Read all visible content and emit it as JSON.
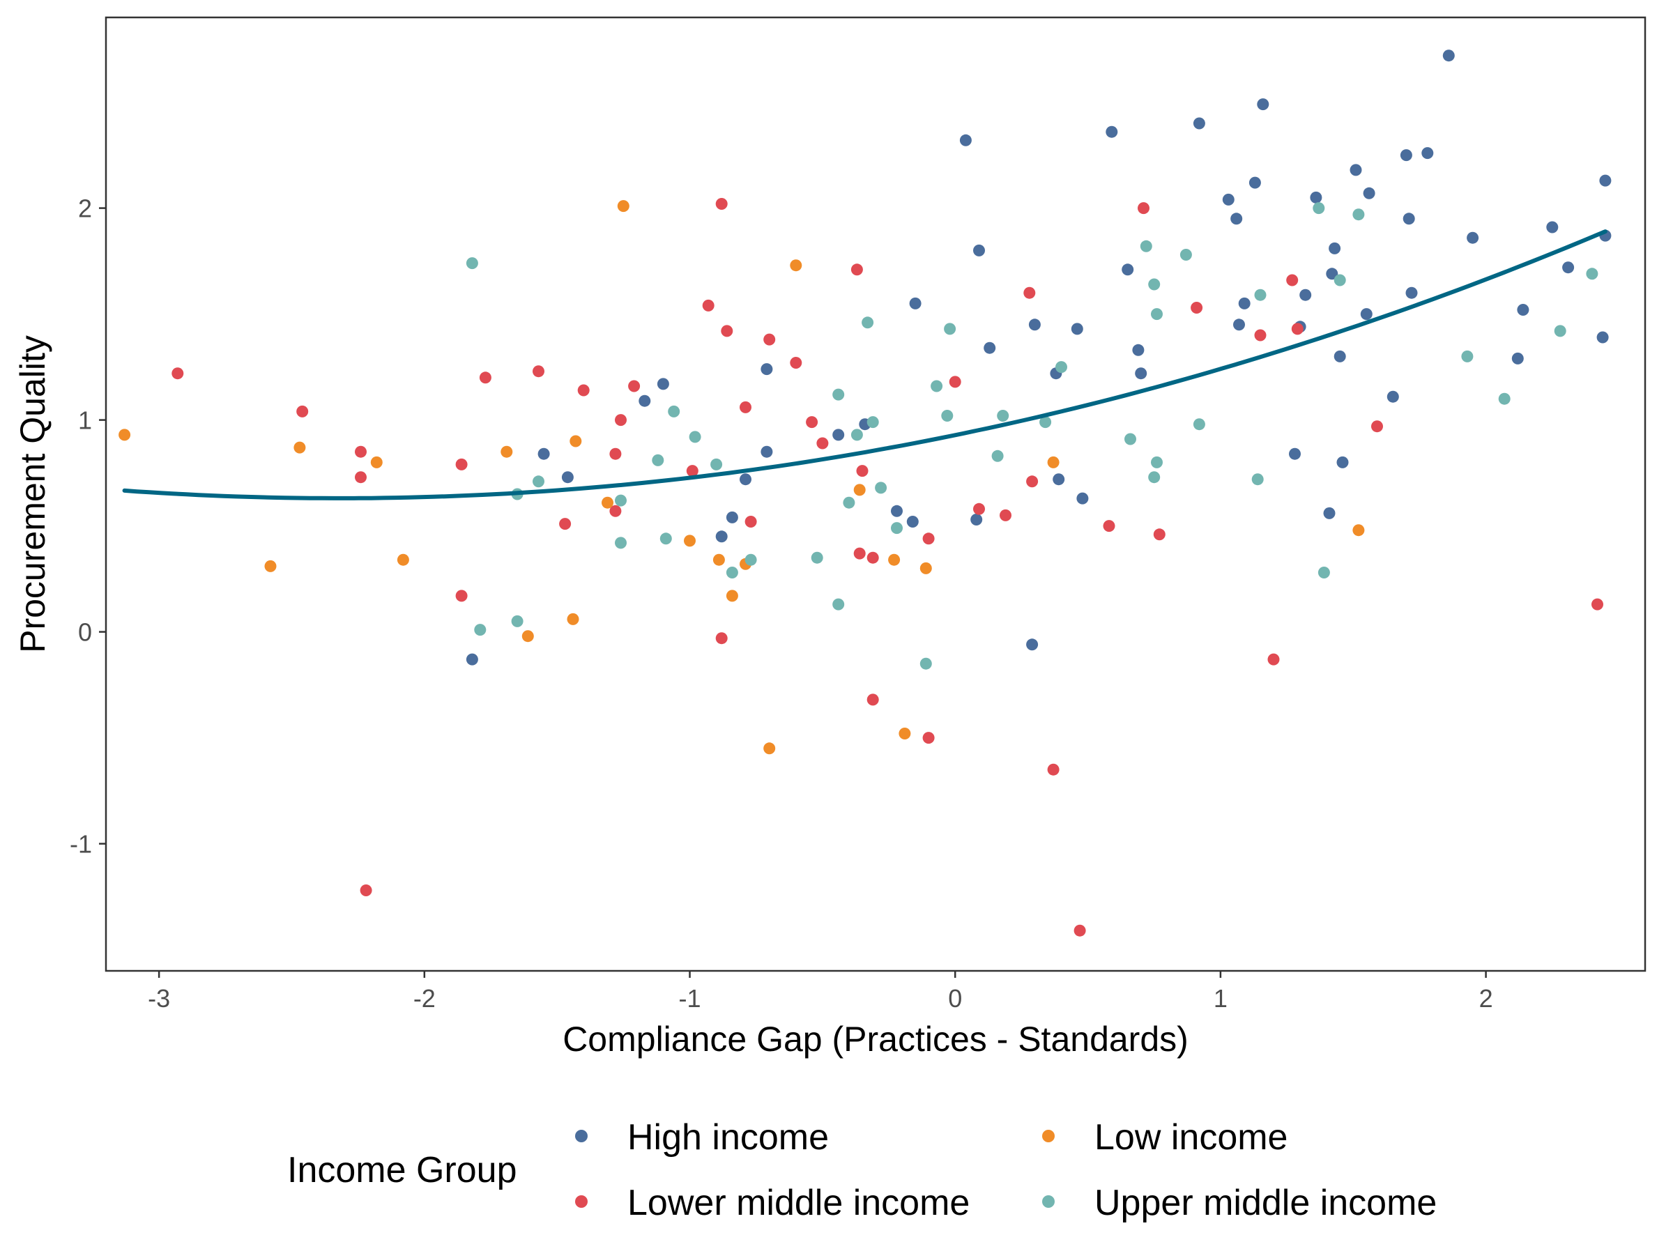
{
  "chart_data": {
    "type": "scatter",
    "title": "",
    "xlabel": "Compliance Gap (Practices - Standards)",
    "ylabel": "Procurement Quality",
    "xlim": [
      -3.2,
      2.6
    ],
    "ylim": [
      -1.6,
      2.9
    ],
    "x_ticks": [
      -3,
      -2,
      -1,
      0,
      1,
      2
    ],
    "y_ticks": [
      -1,
      0,
      1,
      2
    ],
    "grid": false,
    "legend": {
      "title": "Income Group",
      "position": "bottom",
      "entries": [
        {
          "name": "High income",
          "color": "#4a6d9c"
        },
        {
          "name": "Lower middle income",
          "color": "#e04a52"
        },
        {
          "name": "Low income",
          "color": "#f08c28"
        },
        {
          "name": "Upper middle income",
          "color": "#72b5b0"
        }
      ]
    },
    "series": [
      {
        "name": "High income",
        "color": "#4a6d9c",
        "points": [
          [
            -1.82,
            -0.13
          ],
          [
            -1.55,
            0.84
          ],
          [
            -1.46,
            0.73
          ],
          [
            -1.17,
            1.09
          ],
          [
            -1.1,
            1.17
          ],
          [
            -0.88,
            0.45
          ],
          [
            -0.84,
            0.54
          ],
          [
            -0.79,
            0.72
          ],
          [
            -0.71,
            0.85
          ],
          [
            -0.71,
            1.24
          ],
          [
            -0.44,
            0.93
          ],
          [
            -0.34,
            0.98
          ],
          [
            -0.22,
            0.57
          ],
          [
            -0.16,
            0.52
          ],
          [
            -0.15,
            1.55
          ],
          [
            0.04,
            2.32
          ],
          [
            0.08,
            0.53
          ],
          [
            0.09,
            1.8
          ],
          [
            0.13,
            1.34
          ],
          [
            0.29,
            -0.06
          ],
          [
            0.3,
            1.45
          ],
          [
            0.38,
            1.22
          ],
          [
            0.39,
            0.72
          ],
          [
            0.46,
            1.43
          ],
          [
            0.48,
            0.63
          ],
          [
            0.59,
            2.36
          ],
          [
            0.65,
            1.71
          ],
          [
            0.69,
            1.33
          ],
          [
            0.7,
            1.22
          ],
          [
            0.92,
            2.4
          ],
          [
            1.03,
            2.04
          ],
          [
            1.06,
            1.95
          ],
          [
            1.07,
            1.45
          ],
          [
            1.09,
            1.55
          ],
          [
            1.13,
            2.12
          ],
          [
            1.16,
            2.49
          ],
          [
            1.28,
            0.84
          ],
          [
            1.3,
            1.44
          ],
          [
            1.32,
            1.59
          ],
          [
            1.36,
            2.05
          ],
          [
            1.41,
            0.56
          ],
          [
            1.42,
            1.69
          ],
          [
            1.43,
            1.81
          ],
          [
            1.45,
            1.3
          ],
          [
            1.46,
            0.8
          ],
          [
            1.51,
            2.18
          ],
          [
            1.55,
            1.5
          ],
          [
            1.56,
            2.07
          ],
          [
            1.65,
            1.11
          ],
          [
            1.7,
            2.25
          ],
          [
            1.71,
            1.95
          ],
          [
            1.72,
            1.6
          ],
          [
            1.78,
            2.26
          ],
          [
            1.86,
            2.72
          ],
          [
            1.95,
            1.86
          ],
          [
            2.12,
            1.29
          ],
          [
            2.14,
            1.52
          ],
          [
            2.25,
            1.91
          ],
          [
            2.31,
            1.72
          ],
          [
            2.44,
            1.39
          ],
          [
            2.45,
            2.13
          ],
          [
            2.45,
            1.87
          ]
        ]
      },
      {
        "name": "Lower middle income",
        "color": "#e04a52",
        "points": [
          [
            -2.93,
            1.22
          ],
          [
            -2.46,
            1.04
          ],
          [
            -2.24,
            0.85
          ],
          [
            -2.24,
            0.73
          ],
          [
            -2.22,
            -1.22
          ],
          [
            -1.86,
            0.79
          ],
          [
            -1.86,
            0.17
          ],
          [
            -1.77,
            1.2
          ],
          [
            -1.57,
            1.23
          ],
          [
            -1.47,
            0.51
          ],
          [
            -1.4,
            1.14
          ],
          [
            -1.28,
            0.84
          ],
          [
            -1.28,
            0.57
          ],
          [
            -1.26,
            1.0
          ],
          [
            -1.21,
            1.16
          ],
          [
            -0.99,
            0.76
          ],
          [
            -0.93,
            1.54
          ],
          [
            -0.88,
            2.02
          ],
          [
            -0.88,
            -0.03
          ],
          [
            -0.86,
            1.42
          ],
          [
            -0.79,
            1.06
          ],
          [
            -0.77,
            0.52
          ],
          [
            -0.7,
            1.38
          ],
          [
            -0.6,
            1.27
          ],
          [
            -0.54,
            0.99
          ],
          [
            -0.5,
            0.89
          ],
          [
            -0.37,
            1.71
          ],
          [
            -0.36,
            0.37
          ],
          [
            -0.35,
            0.76
          ],
          [
            -0.31,
            0.35
          ],
          [
            -0.31,
            -0.32
          ],
          [
            -0.1,
            -0.5
          ],
          [
            -0.1,
            0.44
          ],
          [
            0.0,
            1.18
          ],
          [
            0.09,
            0.58
          ],
          [
            0.19,
            0.55
          ],
          [
            0.28,
            1.6
          ],
          [
            0.29,
            0.71
          ],
          [
            0.37,
            -0.65
          ],
          [
            0.47,
            -1.41
          ],
          [
            0.58,
            0.5
          ],
          [
            0.71,
            2.0
          ],
          [
            0.77,
            0.46
          ],
          [
            0.91,
            1.53
          ],
          [
            1.15,
            1.4
          ],
          [
            1.2,
            -0.13
          ],
          [
            1.27,
            1.66
          ],
          [
            1.29,
            1.43
          ],
          [
            1.59,
            0.97
          ],
          [
            2.42,
            0.13
          ]
        ]
      },
      {
        "name": "Low income",
        "color": "#f08c28",
        "points": [
          [
            -3.13,
            0.93
          ],
          [
            -2.58,
            0.31
          ],
          [
            -2.47,
            0.87
          ],
          [
            -2.18,
            0.8
          ],
          [
            -2.08,
            0.34
          ],
          [
            -1.69,
            0.85
          ],
          [
            -1.61,
            -0.02
          ],
          [
            -1.44,
            0.06
          ],
          [
            -1.43,
            0.9
          ],
          [
            -1.31,
            0.61
          ],
          [
            -1.25,
            2.01
          ],
          [
            -1.0,
            0.43
          ],
          [
            -0.89,
            0.34
          ],
          [
            -0.84,
            0.17
          ],
          [
            -0.79,
            0.32
          ],
          [
            -0.7,
            -0.55
          ],
          [
            -0.6,
            1.73
          ],
          [
            -0.36,
            0.67
          ],
          [
            -0.23,
            0.34
          ],
          [
            -0.19,
            -0.48
          ],
          [
            -0.11,
            0.3
          ],
          [
            0.37,
            0.8
          ],
          [
            1.52,
            0.48
          ]
        ]
      },
      {
        "name": "Upper middle income",
        "color": "#72b5b0",
        "points": [
          [
            -1.82,
            1.74
          ],
          [
            -1.79,
            0.01
          ],
          [
            -1.65,
            0.65
          ],
          [
            -1.65,
            0.05
          ],
          [
            -1.57,
            0.71
          ],
          [
            -1.26,
            0.62
          ],
          [
            -1.26,
            0.42
          ],
          [
            -1.12,
            0.81
          ],
          [
            -1.09,
            0.44
          ],
          [
            -1.06,
            1.04
          ],
          [
            -0.98,
            0.92
          ],
          [
            -0.9,
            0.79
          ],
          [
            -0.84,
            0.28
          ],
          [
            -0.77,
            0.34
          ],
          [
            -0.52,
            0.35
          ],
          [
            -0.44,
            1.12
          ],
          [
            -0.44,
            0.13
          ],
          [
            -0.4,
            0.61
          ],
          [
            -0.37,
            0.93
          ],
          [
            -0.33,
            1.46
          ],
          [
            -0.31,
            0.99
          ],
          [
            -0.28,
            0.68
          ],
          [
            -0.22,
            0.49
          ],
          [
            -0.11,
            -0.15
          ],
          [
            -0.07,
            1.16
          ],
          [
            -0.03,
            1.02
          ],
          [
            -0.02,
            1.43
          ],
          [
            0.16,
            0.83
          ],
          [
            0.18,
            1.02
          ],
          [
            0.34,
            0.99
          ],
          [
            0.4,
            1.25
          ],
          [
            0.66,
            0.91
          ],
          [
            0.72,
            1.82
          ],
          [
            0.75,
            1.64
          ],
          [
            0.75,
            0.73
          ],
          [
            0.76,
            1.5
          ],
          [
            0.76,
            0.8
          ],
          [
            0.87,
            1.78
          ],
          [
            0.92,
            0.98
          ],
          [
            1.14,
            0.72
          ],
          [
            1.15,
            1.59
          ],
          [
            1.37,
            2.0
          ],
          [
            1.39,
            0.28
          ],
          [
            1.45,
            1.66
          ],
          [
            1.52,
            1.97
          ],
          [
            1.93,
            1.3
          ],
          [
            2.07,
            1.1
          ],
          [
            2.28,
            1.42
          ],
          [
            2.4,
            1.69
          ]
        ]
      }
    ],
    "trend_line": {
      "type": "quadratic fit",
      "color": "#006684",
      "x_range": [
        -3.13,
        2.45
      ],
      "coefficients": [
        0.9287,
        0.2568,
        0.0553
      ]
    }
  }
}
